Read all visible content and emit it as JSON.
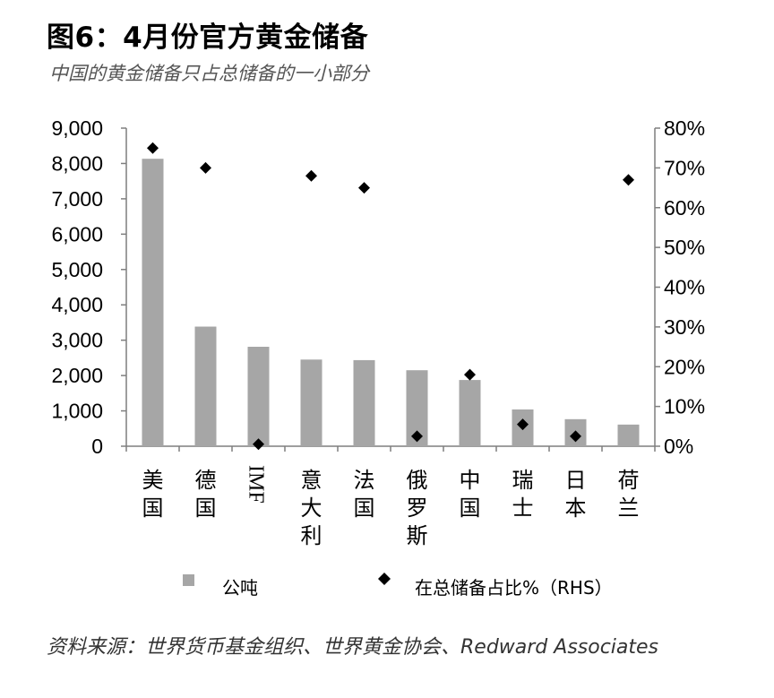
{
  "title": "图6：4月份官方黄金储备",
  "subtitle": "中国的黄金储备只占总储备的一小部分",
  "source": "资料来源：世界货币基金组织、世界黄金协会、Redward Associates",
  "colors": {
    "bar": "#a6a6a6",
    "point": "#000000",
    "axis": "#7f7f7f"
  },
  "chart_data": {
    "type": "bar",
    "categories": [
      "美国",
      "德国",
      "IMF",
      "意大利",
      "法国",
      "俄罗斯",
      "中国",
      "瑞士",
      "日本",
      "荷兰"
    ],
    "series": [
      {
        "name": "公吨",
        "type": "bar",
        "axis": "left",
        "values": [
          8133,
          3384,
          2814,
          2452,
          2436,
          2150,
          1874,
          1040,
          765,
          612
        ]
      },
      {
        "name": "在总储备占比%（RHS）",
        "type": "scatter",
        "axis": "right",
        "values": [
          75.0,
          70.0,
          0.5,
          68.0,
          65.0,
          2.5,
          18.0,
          5.5,
          2.5,
          67.0
        ]
      }
    ],
    "y_left": {
      "min": 0,
      "max": 9000,
      "ticks": [
        "0",
        "1,000",
        "2,000",
        "3,000",
        "4,000",
        "5,000",
        "6,000",
        "7,000",
        "8,000",
        "9,000"
      ]
    },
    "y_right": {
      "min": 0,
      "max": 80,
      "ticks": [
        "0%",
        "10%",
        "20%",
        "30%",
        "40%",
        "50%",
        "60%",
        "70%",
        "80%"
      ]
    },
    "legend": [
      "公吨",
      "在总储备占比%（RHS）"
    ],
    "legend_position": "bottom",
    "grid": false
  }
}
